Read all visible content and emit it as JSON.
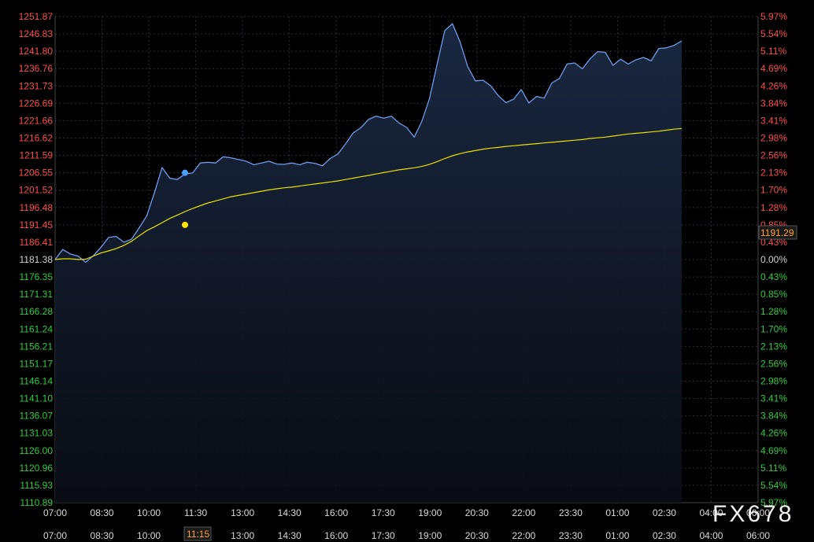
{
  "chart_data": {
    "type": "line",
    "watermark": "FX678",
    "base_price": 1181.38,
    "price_ticks": [
      "1251.87",
      "1246.83",
      "1241.80",
      "1236.76",
      "1231.73",
      "1226.69",
      "1221.66",
      "1216.62",
      "1211.59",
      "1206.55",
      "1201.52",
      "1196.48",
      "1191.45",
      "1186.41",
      "1181.38",
      "1176.35",
      "1171.31",
      "1166.28",
      "1161.24",
      "1156.21",
      "1151.17",
      "1146.14",
      "1141.10",
      "1136.07",
      "1131.03",
      "1126.00",
      "1120.96",
      "1115.93",
      "1110.89"
    ],
    "pct_ticks": [
      "5.97%",
      "5.54%",
      "5.11%",
      "4.69%",
      "4.26%",
      "3.84%",
      "3.41%",
      "2.98%",
      "2.56%",
      "2.13%",
      "1.70%",
      "1.28%",
      "0.85%",
      "0.43%",
      "0.00%",
      "0.43%",
      "0.85%",
      "1.28%",
      "1.70%",
      "2.13%",
      "2.56%",
      "2.98%",
      "3.41%",
      "3.84%",
      "4.26%",
      "4.69%",
      "5.11%",
      "5.54%",
      "5.97%"
    ],
    "ylim": [
      1110.89,
      1251.87
    ],
    "time_ticks": [
      "07:00",
      "08:30",
      "10:00",
      "11:30",
      "13:00",
      "14:30",
      "16:00",
      "17:30",
      "19:00",
      "20:30",
      "22:00",
      "23:30",
      "01:00",
      "02:30",
      "04:00",
      "06:00"
    ],
    "time_ticks_bottom": [
      "07:00",
      "08:30",
      "10:00",
      "11:30",
      "13:00",
      "14:30",
      "16:00",
      "17:30",
      "19:00",
      "20:30",
      "22:00",
      "23:30",
      "01:00",
      "02:30",
      "04:00",
      "06:00"
    ],
    "grid": true,
    "crosshair": {
      "time_label": "11:15",
      "price_label": "1191.29",
      "price_at_marker": 1206.55,
      "avg_at_marker": 1191.45
    },
    "x_minutes": [
      0,
      15,
      30,
      45,
      60,
      75,
      90,
      105,
      120,
      135,
      150,
      165,
      180,
      195,
      210,
      225,
      240,
      255,
      270,
      285,
      300,
      315,
      330,
      345,
      360,
      375,
      390,
      405,
      420,
      435,
      450,
      465,
      480,
      495,
      510,
      525,
      540,
      555,
      570,
      585,
      600,
      615,
      630,
      645,
      660,
      675,
      690,
      705,
      720,
      735,
      750,
      765,
      780,
      795,
      810,
      825,
      840,
      855,
      870,
      885,
      900,
      915,
      930,
      945,
      960,
      975,
      990,
      1005,
      1020,
      1035,
      1050,
      1065,
      1080,
      1095,
      1110,
      1125,
      1140,
      1155,
      1170,
      1185,
      1200,
      1215,
      1230,
      1245,
      1260,
      1275,
      1290,
      1305,
      1320,
      1335,
      1350,
      1365,
      1380
    ],
    "series": [
      {
        "values": [
          1181.4,
          1184.3,
          1183.0,
          1182.4,
          1180.6,
          1182.5,
          1184.9,
          1187.8,
          1188.1,
          1186.4,
          1187.3,
          1190.6,
          1194.1,
          1200.8,
          1208.1,
          1205.0,
          1204.6,
          1206.2,
          1206.5,
          1209.4,
          1209.6,
          1209.4,
          1211.2,
          1210.9,
          1210.4,
          1209.9,
          1208.9,
          1209.4,
          1209.9,
          1209.1,
          1209.0,
          1209.4,
          1208.9,
          1209.6,
          1209.3,
          1208.6,
          1210.7,
          1212.0,
          1214.9,
          1218.1,
          1219.6,
          1222.0,
          1223.0,
          1222.4,
          1223.0,
          1221.0,
          1219.7,
          1216.9,
          1221.5,
          1228.1,
          1238.1,
          1247.8,
          1249.8,
          1244.5,
          1237.3,
          1233.2,
          1233.4,
          1231.8,
          1228.9,
          1226.9,
          1227.9,
          1230.7,
          1226.8,
          1228.7,
          1228.2,
          1232.6,
          1233.9,
          1238.1,
          1238.4,
          1236.7,
          1239.6,
          1241.7,
          1241.5,
          1237.7,
          1239.5,
          1238.1,
          1239.3,
          1240.0,
          1239.0,
          1242.6,
          1242.8,
          1243.5,
          1244.8
        ]
      },
      {
        "values": [
          1181.4,
          1181.6,
          1181.6,
          1181.4,
          1181.5,
          1182.4,
          1183.3,
          1183.9,
          1184.6,
          1185.5,
          1186.7,
          1188.3,
          1189.8,
          1190.9,
          1192.1,
          1193.3,
          1194.3,
          1195.3,
          1196.2,
          1197.0,
          1197.8,
          1198.4,
          1199.0,
          1199.6,
          1200.0,
          1200.4,
          1200.8,
          1201.2,
          1201.6,
          1201.9,
          1202.2,
          1202.4,
          1202.7,
          1203.0,
          1203.3,
          1203.6,
          1203.9,
          1204.2,
          1204.6,
          1205.0,
          1205.4,
          1205.8,
          1206.2,
          1206.6,
          1207.0,
          1207.4,
          1207.7,
          1208.0,
          1208.4,
          1209.0,
          1209.8,
          1210.7,
          1211.5,
          1212.1,
          1212.6,
          1213.0,
          1213.4,
          1213.7,
          1213.9,
          1214.2,
          1214.4,
          1214.6,
          1214.8,
          1215.0,
          1215.2,
          1215.4,
          1215.6,
          1215.8,
          1216.0,
          1216.2,
          1216.5,
          1216.7,
          1216.9,
          1217.2,
          1217.5,
          1217.8,
          1218.0,
          1218.2,
          1218.4,
          1218.6,
          1218.9,
          1219.2,
          1219.4
        ]
      }
    ],
    "colors": {
      "price_line": "#6f9bea",
      "price_fill_top": "#1b2a45",
      "avg_line": "#e6e000",
      "price_marker": "#4aa0ff",
      "avg_marker": "#ffe600",
      "grid": "#2a2e36",
      "tick_up": "#ff4d4d",
      "tick_down": "#2ecc40",
      "tick_zero": "#d0d0d0",
      "time_label": "#ff9f2e"
    }
  }
}
